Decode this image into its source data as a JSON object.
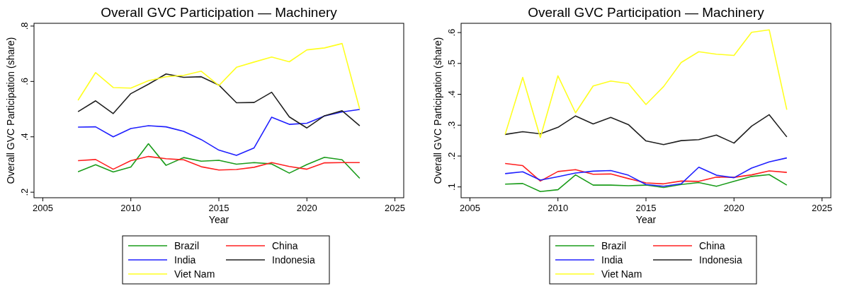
{
  "chart_data": [
    {
      "type": "line",
      "title": "Overall GVC Participation — Machinery",
      "xlabel": "Year",
      "ylabel": "Overall GVC Participation (share)",
      "x": [
        2007,
        2008,
        2009,
        2010,
        2011,
        2012,
        2013,
        2014,
        2015,
        2016,
        2017,
        2018,
        2019,
        2020,
        2021,
        2022,
        2023
      ],
      "xlim": [
        2004.5,
        2025.5
      ],
      "xticks": [
        2005,
        2010,
        2015,
        2020,
        2025
      ],
      "ylim": [
        0.18,
        0.81
      ],
      "yticks": [
        {
          "value": 0.2,
          "label": ".2"
        },
        {
          "value": 0.4,
          "label": ".4"
        },
        {
          "value": 0.6,
          "label": ".6"
        },
        {
          "value": 0.8,
          "label": ".8"
        }
      ],
      "grid": false,
      "legend": "bottom",
      "series": [
        {
          "name": "Brazil",
          "color": "#1a9c1a",
          "values": [
            0.274,
            0.299,
            0.273,
            0.291,
            0.375,
            0.297,
            0.325,
            0.312,
            0.315,
            0.301,
            0.307,
            0.302,
            0.269,
            0.3,
            0.326,
            0.317,
            0.25
          ]
        },
        {
          "name": "China",
          "color": "#ff2020",
          "values": [
            0.314,
            0.318,
            0.283,
            0.314,
            0.329,
            0.321,
            0.317,
            0.292,
            0.28,
            0.282,
            0.29,
            0.307,
            0.293,
            0.283,
            0.306,
            0.307,
            0.307
          ]
        },
        {
          "name": "India",
          "color": "#2020ff",
          "values": [
            0.435,
            0.436,
            0.4,
            0.43,
            0.44,
            0.436,
            0.42,
            0.39,
            0.352,
            0.333,
            0.36,
            0.471,
            0.445,
            0.449,
            0.475,
            0.49,
            0.499
          ]
        },
        {
          "name": "Indonesia",
          "color": "#202020",
          "values": [
            0.491,
            0.53,
            0.484,
            0.556,
            0.59,
            0.627,
            0.615,
            0.617,
            0.587,
            0.523,
            0.524,
            0.561,
            0.472,
            0.432,
            0.476,
            0.494,
            0.44
          ]
        },
        {
          "name": "Viet Nam",
          "color": "#ffff20",
          "values": [
            0.532,
            0.632,
            0.578,
            0.576,
            0.603,
            0.617,
            0.622,
            0.637,
            0.585,
            0.651,
            0.67,
            0.688,
            0.671,
            0.714,
            0.721,
            0.737,
            0.5
          ]
        }
      ]
    },
    {
      "type": "line",
      "title": "Overall GVC Participation — Machinery",
      "xlabel": "Year",
      "ylabel": "Overall GVC Participation (share)",
      "x": [
        2007,
        2008,
        2009,
        2010,
        2011,
        2012,
        2013,
        2014,
        2015,
        2016,
        2017,
        2018,
        2019,
        2020,
        2021,
        2022,
        2023
      ],
      "xlim": [
        2004.5,
        2025.5
      ],
      "xticks": [
        2005,
        2010,
        2015,
        2020,
        2025
      ],
      "ylim": [
        0.065,
        0.63
      ],
      "yticks": [
        {
          "value": 0.1,
          "label": ".1"
        },
        {
          "value": 0.2,
          "label": ".2"
        },
        {
          "value": 0.3,
          "label": ".3"
        },
        {
          "value": 0.4,
          "label": ".4"
        },
        {
          "value": 0.5,
          "label": ".5"
        },
        {
          "value": 0.6,
          "label": ".6"
        }
      ],
      "grid": false,
      "legend": "bottom",
      "series": [
        {
          "name": "Brazil",
          "color": "#1a9c1a",
          "values": [
            0.109,
            0.111,
            0.085,
            0.091,
            0.139,
            0.106,
            0.106,
            0.104,
            0.106,
            0.098,
            0.108,
            0.114,
            0.102,
            0.118,
            0.134,
            0.14,
            0.106
          ]
        },
        {
          "name": "China",
          "color": "#ff2020",
          "values": [
            0.176,
            0.169,
            0.119,
            0.15,
            0.156,
            0.141,
            0.142,
            0.127,
            0.113,
            0.11,
            0.119,
            0.118,
            0.132,
            0.131,
            0.139,
            0.152,
            0.147
          ]
        },
        {
          "name": "India",
          "color": "#2020ff",
          "values": [
            0.143,
            0.149,
            0.122,
            0.133,
            0.145,
            0.151,
            0.153,
            0.138,
            0.108,
            0.102,
            0.11,
            0.164,
            0.138,
            0.13,
            0.161,
            0.181,
            0.194
          ]
        },
        {
          "name": "Indonesia",
          "color": "#202020",
          "values": [
            0.27,
            0.279,
            0.272,
            0.293,
            0.33,
            0.304,
            0.325,
            0.302,
            0.249,
            0.237,
            0.25,
            0.253,
            0.268,
            0.242,
            0.297,
            0.334,
            0.262
          ]
        },
        {
          "name": "Viet Nam",
          "color": "#ffff20",
          "values": [
            0.27,
            0.455,
            0.26,
            0.46,
            0.34,
            0.427,
            0.443,
            0.435,
            0.367,
            0.425,
            0.503,
            0.538,
            0.53,
            0.526,
            0.601,
            0.609,
            0.35
          ]
        }
      ]
    }
  ]
}
